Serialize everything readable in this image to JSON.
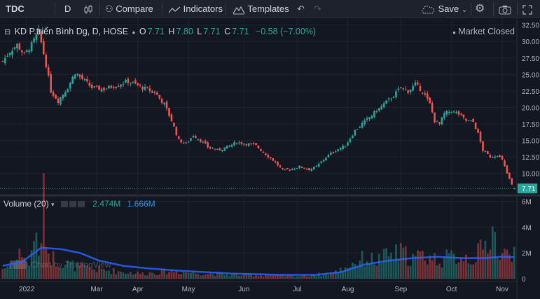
{
  "toolbar": {
    "symbol": "TDC",
    "interval": "D",
    "compare": "Compare",
    "indicators": "Indicators",
    "templates": "Templates",
    "save": "Save"
  },
  "legend": {
    "name": "KD P.triển Bình Dg, D, HOSE",
    "o_label": "O",
    "o_value": "7.71",
    "h_label": "H",
    "h_value": "7.80",
    "l_label": "L",
    "l_value": "7.71",
    "c_label": "C",
    "c_value": "7.71",
    "change": "−0.58 (−7.00%)",
    "status": "Market Closed"
  },
  "volume_legend": {
    "label": "Volume (20)",
    "volume": "2.474M",
    "ma": "1.666M"
  },
  "watermark": "Chart by TradingView",
  "last_price_label": "7.71",
  "colors": {
    "up": "#26a69a",
    "down": "#ef5350",
    "bg": "#131722",
    "grid": "#1e222d",
    "ma": "#2962ff"
  },
  "chart_data": [
    {
      "type": "candlestick",
      "y_ticks": [
        "32.50",
        "30.00",
        "27.50",
        "25.00",
        "22.50",
        "20.00",
        "17.50",
        "15.00",
        "12.50",
        "10.00"
      ],
      "y_tick_values": [
        32.5,
        30,
        27.5,
        25,
        22.5,
        20,
        17.5,
        15,
        12.5,
        10
      ],
      "ylim": [
        7.3,
        33
      ],
      "x_ticks": [
        {
          "label": "2022",
          "idx": 10
        },
        {
          "label": "Mar",
          "idx": 39
        },
        {
          "label": "Apr",
          "idx": 56
        },
        {
          "label": "May",
          "idx": 77
        },
        {
          "label": "Jun",
          "idx": 100
        },
        {
          "label": "Jul",
          "idx": 122
        },
        {
          "label": "Aug",
          "idx": 143
        },
        {
          "label": "Sep",
          "idx": 165
        },
        {
          "label": "Oct",
          "idx": 186
        },
        {
          "label": "Nov",
          "idx": 207
        }
      ],
      "close_anchors": [
        [
          0,
          27.0
        ],
        [
          3,
          28.5
        ],
        [
          6,
          29.5
        ],
        [
          9,
          28.0
        ],
        [
          12,
          29.5
        ],
        [
          15,
          31.5
        ],
        [
          18,
          26.5
        ],
        [
          20,
          22.5
        ],
        [
          23,
          21.0
        ],
        [
          27,
          23.0
        ],
        [
          30,
          25.3
        ],
        [
          34,
          24.0
        ],
        [
          37,
          23.0
        ],
        [
          42,
          22.8
        ],
        [
          48,
          23.5
        ],
        [
          52,
          24.0
        ],
        [
          58,
          23.0
        ],
        [
          63,
          22.3
        ],
        [
          67,
          20.5
        ],
        [
          70,
          18.0
        ],
        [
          73,
          15.0
        ],
        [
          76,
          14.5
        ],
        [
          79,
          15.8
        ],
        [
          82,
          15.0
        ],
        [
          85,
          14.0
        ],
        [
          89,
          13.5
        ],
        [
          93,
          14.0
        ],
        [
          97,
          14.7
        ],
        [
          101,
          14.5
        ],
        [
          105,
          14.2
        ],
        [
          108,
          13.2
        ],
        [
          112,
          12.0
        ],
        [
          116,
          10.5
        ],
        [
          119,
          10.6
        ],
        [
          123,
          11.0
        ],
        [
          127,
          10.6
        ],
        [
          130,
          11.0
        ],
        [
          134,
          12.5
        ],
        [
          138,
          13.5
        ],
        [
          142,
          14.2
        ],
        [
          146,
          16.5
        ],
        [
          149,
          17.5
        ],
        [
          152,
          18.5
        ],
        [
          155,
          19.5
        ],
        [
          158,
          20.5
        ],
        [
          162,
          21.8
        ],
        [
          165,
          23.0
        ],
        [
          168,
          22.5
        ],
        [
          171,
          23.5
        ],
        [
          174,
          22.5
        ],
        [
          177,
          20.5
        ],
        [
          179,
          18.0
        ],
        [
          181,
          17.5
        ],
        [
          183,
          19.0
        ],
        [
          186,
          19.5
        ],
        [
          189,
          19.0
        ],
        [
          192,
          18.0
        ],
        [
          195,
          17.8
        ],
        [
          197,
          16.0
        ],
        [
          199,
          13.5
        ],
        [
          202,
          12.5
        ],
        [
          205,
          12.8
        ],
        [
          207,
          12.0
        ],
        [
          209,
          10.0
        ],
        [
          211,
          8.29
        ],
        [
          212,
          7.71
        ]
      ]
    },
    {
      "type": "bar",
      "name": "Volume",
      "y_ticks": [
        "6M",
        "4M",
        "2M",
        "0"
      ],
      "y_tick_values": [
        6,
        4,
        2,
        0
      ],
      "unit": "M",
      "ylim": [
        0,
        6.3
      ],
      "volume_anchors": [
        [
          0,
          0.8
        ],
        [
          5,
          1.2
        ],
        [
          8,
          2.2
        ],
        [
          11,
          0.9
        ],
        [
          13,
          3.8
        ],
        [
          15,
          1.6
        ],
        [
          17,
          5.8
        ],
        [
          19,
          2.0
        ],
        [
          22,
          1.4
        ],
        [
          26,
          1.2
        ],
        [
          30,
          1.0
        ],
        [
          35,
          0.8
        ],
        [
          40,
          0.7
        ],
        [
          46,
          0.6
        ],
        [
          52,
          0.5
        ],
        [
          58,
          0.4
        ],
        [
          64,
          0.5
        ],
        [
          70,
          0.6
        ],
        [
          76,
          0.5
        ],
        [
          85,
          0.4
        ],
        [
          95,
          0.3
        ],
        [
          105,
          0.3
        ],
        [
          115,
          0.25
        ],
        [
          122,
          0.2
        ],
        [
          130,
          0.3
        ],
        [
          138,
          0.5
        ],
        [
          145,
          1.2
        ],
        [
          150,
          1.6
        ],
        [
          155,
          1.4
        ],
        [
          160,
          1.8
        ],
        [
          165,
          2.0
        ],
        [
          170,
          1.6
        ],
        [
          175,
          1.8
        ],
        [
          180,
          1.5
        ],
        [
          185,
          1.6
        ],
        [
          190,
          1.8
        ],
        [
          195,
          1.6
        ],
        [
          200,
          2.5
        ],
        [
          203,
          4.0
        ],
        [
          206,
          1.5
        ],
        [
          209,
          2.0
        ],
        [
          212,
          2.47
        ]
      ],
      "ma_anchors": [
        [
          0,
          1.0
        ],
        [
          8,
          1.3
        ],
        [
          16,
          2.4
        ],
        [
          24,
          2.3
        ],
        [
          32,
          2.0
        ],
        [
          40,
          1.4
        ],
        [
          50,
          1.0
        ],
        [
          60,
          0.8
        ],
        [
          75,
          0.6
        ],
        [
          95,
          0.4
        ],
        [
          115,
          0.3
        ],
        [
          130,
          0.3
        ],
        [
          140,
          0.5
        ],
        [
          150,
          1.1
        ],
        [
          160,
          1.4
        ],
        [
          170,
          1.6
        ],
        [
          180,
          1.7
        ],
        [
          190,
          1.6
        ],
        [
          200,
          1.6
        ],
        [
          206,
          1.7
        ],
        [
          212,
          1.67
        ]
      ]
    }
  ]
}
